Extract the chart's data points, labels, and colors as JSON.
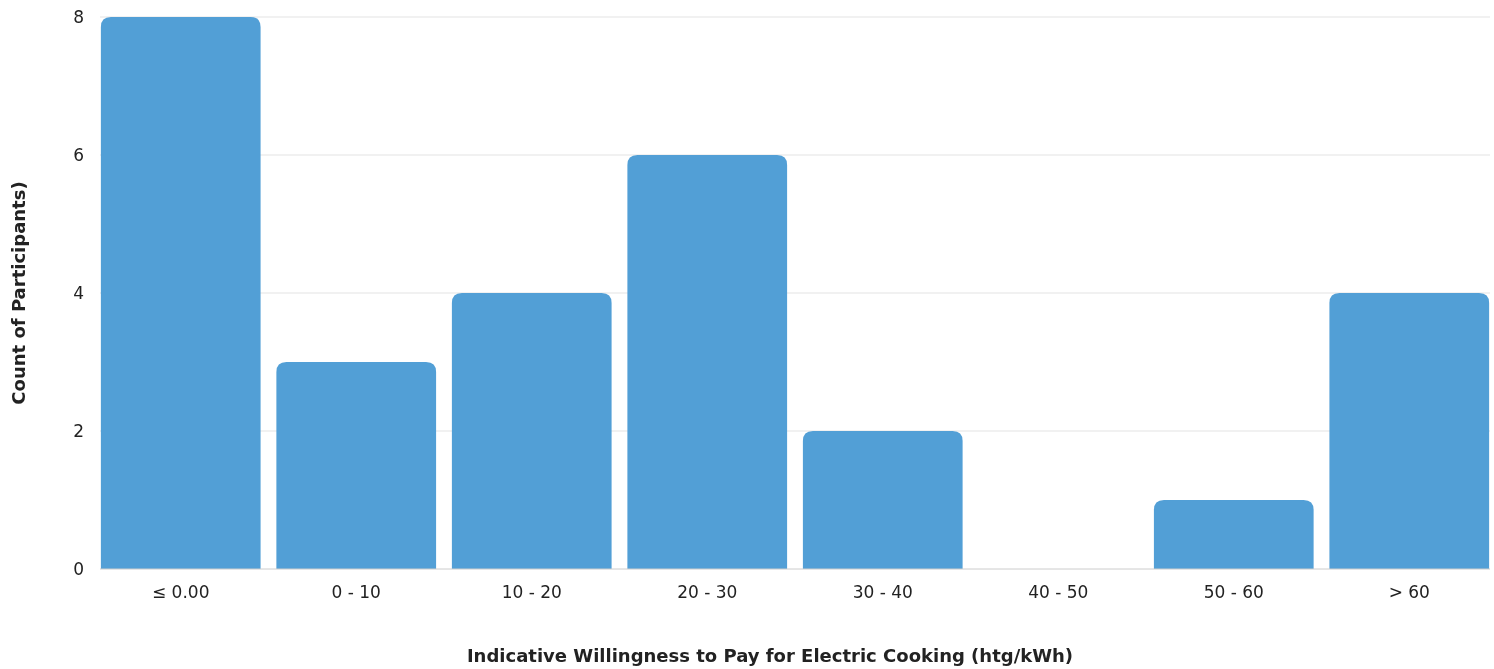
{
  "chart_data": {
    "type": "bar",
    "xlabel": "Indicative Willingness to Pay for Electric Cooking (htg/kWh)",
    "ylabel": "Count of Participants)",
    "categories": [
      "≤ 0.00",
      "0 - 10",
      "10 - 20",
      "20 - 30",
      "30 - 40",
      "40 - 50",
      "50 - 60",
      "> 60"
    ],
    "values": [
      8,
      3,
      4,
      6,
      2,
      0,
      1,
      4
    ],
    "color": "#529fd6",
    "ylim": [
      0,
      8
    ],
    "yticks": [
      0,
      2,
      4,
      6,
      8
    ],
    "grid": "y"
  }
}
